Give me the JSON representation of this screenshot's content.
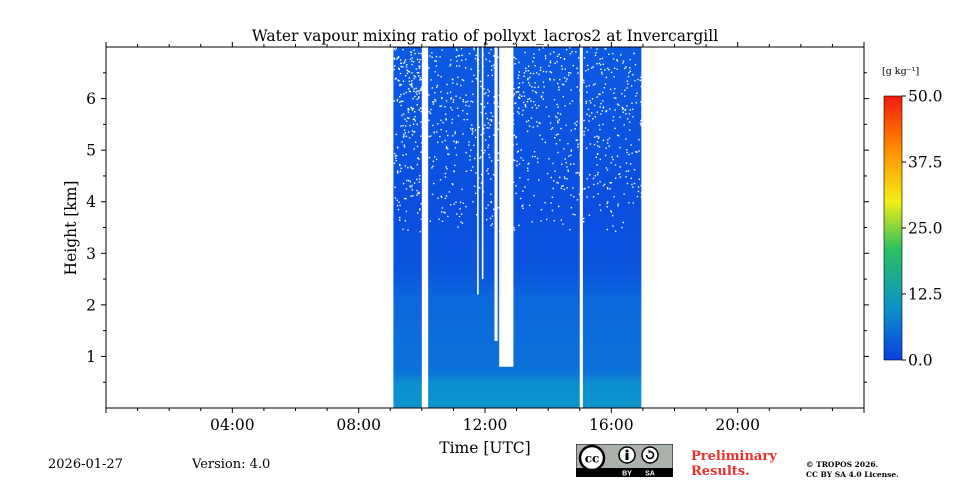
{
  "chart_data": {
    "type": "heatmap",
    "title": "Water vapour mixing ratio of pollyxt_lacros2 at Invercargill",
    "xlabel": "Time [UTC]",
    "ylabel": "Height [km]",
    "xlim_hours": [
      0,
      24
    ],
    "ylim_km": [
      0,
      7
    ],
    "x_ticks": [
      {
        "hour": 4,
        "label": "04:00"
      },
      {
        "hour": 8,
        "label": "08:00"
      },
      {
        "hour": 12,
        "label": "12:00"
      },
      {
        "hour": 16,
        "label": "16:00"
      },
      {
        "hour": 20,
        "label": "20:00"
      }
    ],
    "y_ticks": [
      {
        "km": 1,
        "label": "1"
      },
      {
        "km": 2,
        "label": "2"
      },
      {
        "km": 3,
        "label": "3"
      },
      {
        "km": 4,
        "label": "4"
      },
      {
        "km": 5,
        "label": "5"
      },
      {
        "km": 6,
        "label": "6"
      }
    ],
    "colorbar": {
      "unit_label": "[g kg⁻¹]",
      "range": [
        0,
        50
      ],
      "ticks": [
        {
          "value": 0,
          "label": "0.0"
        },
        {
          "value": 12.5,
          "label": "12.5"
        },
        {
          "value": 25,
          "label": "25.0"
        },
        {
          "value": 37.5,
          "label": "37.5"
        },
        {
          "value": 50,
          "label": "50.0"
        }
      ],
      "colors": [
        "#0a3fe0",
        "#0d93c8",
        "#2cc060",
        "#f2ee14",
        "#ff8c00",
        "#f31a0f"
      ]
    },
    "data_segments": [
      {
        "start_hour": 9.1,
        "end_hour": 10.0
      },
      {
        "start_hour": 10.2,
        "end_hour": 15.0
      },
      {
        "start_hour": 15.1,
        "end_hour": 16.95
      }
    ],
    "gaps_in_data": [
      {
        "start_hour": 12.45,
        "end_hour": 12.9,
        "bottom_km": 0.8
      },
      {
        "start_hour": 12.3,
        "end_hour": 12.4,
        "bottom_km": 1.3
      },
      {
        "start_hour": 11.75,
        "end_hour": 11.8,
        "bottom_km": 2.2
      },
      {
        "start_hour": 11.9,
        "end_hour": 11.95,
        "bottom_km": 2.5
      }
    ],
    "typical_values_g_per_kg": [
      {
        "height_range_km": [
          0,
          1
        ],
        "value": 6
      },
      {
        "height_range_km": [
          1,
          3
        ],
        "value": 4
      },
      {
        "height_range_km": [
          3,
          7
        ],
        "value": 1.5
      }
    ]
  },
  "footer": {
    "date": "2026-01-27",
    "version": "Version: 4.0",
    "license_badge": {
      "cc": "cc",
      "by": "BY",
      "sa": "SA"
    },
    "preliminary_line1": "Preliminary",
    "preliminary_line2": "Results.",
    "copyright_line1": "© TROPOS 2026.",
    "copyright_line2": "CC BY SA 4.0 License."
  }
}
